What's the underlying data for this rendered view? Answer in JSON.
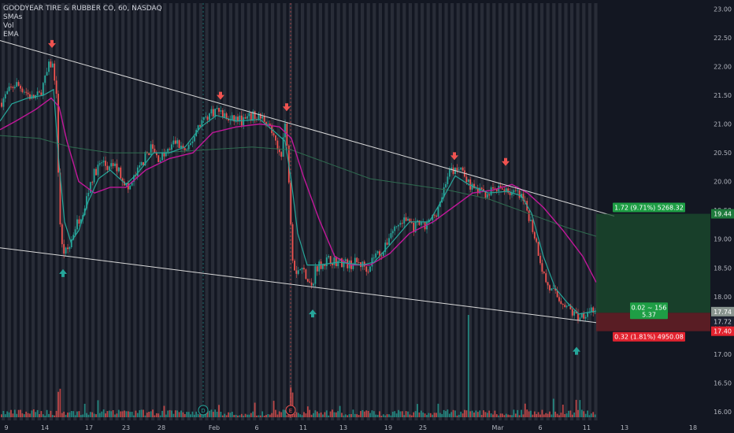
{
  "legend": {
    "symbol": "GOODYEAR TIRE & RUBBER CO, 60, NASDAQ",
    "indicators": [
      "SMAs",
      "Vol",
      "EMA"
    ]
  },
  "colors": {
    "background": "#131722",
    "session_stripe": "#3b3e48",
    "up_candle": "#26a69a",
    "down_candle": "#ef5350",
    "ema_fast": "#26a69a",
    "sma_mid": "#c2179a",
    "sma_slow": "#2e6b4f",
    "trendline": "#d9d9d9",
    "marker_down": "#ef5350",
    "marker_up": "#26a69a"
  },
  "chart_data": {
    "type": "candlestick",
    "yaxis": {
      "range": [
        15.85,
        23.1
      ],
      "ticks": [
        "16.00",
        "16.50",
        "17.00",
        "17.50",
        "18.00",
        "18.50",
        "19.00",
        "19.50",
        "20.00",
        "20.50",
        "21.00",
        "21.50",
        "22.00",
        "22.50",
        "23.00"
      ]
    },
    "xaxis": {
      "ticks": [
        {
          "label": "9",
          "pos": 8
        },
        {
          "label": "14",
          "pos": 57
        },
        {
          "label": "17",
          "pos": 113
        },
        {
          "label": "23",
          "pos": 160
        },
        {
          "label": "28",
          "pos": 205
        },
        {
          "label": "Feb",
          "pos": 272
        },
        {
          "label": "6",
          "pos": 326
        },
        {
          "label": "11",
          "pos": 385
        },
        {
          "label": "13",
          "pos": 436
        },
        {
          "label": "19",
          "pos": 493
        },
        {
          "label": "25",
          "pos": 537
        },
        {
          "label": "Mar",
          "pos": 632
        },
        {
          "label": "6",
          "pos": 686
        },
        {
          "label": "11",
          "pos": 745
        },
        {
          "label": "13",
          "pos": 793
        },
        {
          "label": "18",
          "pos": 880
        }
      ]
    },
    "price_path": [
      [
        0,
        21.35
      ],
      [
        10,
        21.55
      ],
      [
        20,
        21.7
      ],
      [
        30,
        21.6
      ],
      [
        40,
        21.45
      ],
      [
        50,
        21.5
      ],
      [
        58,
        21.8
      ],
      [
        63,
        22.05
      ],
      [
        68,
        22.0
      ],
      [
        72,
        21.4
      ],
      [
        75,
        19.6
      ],
      [
        78,
        18.9
      ],
      [
        82,
        18.75
      ],
      [
        88,
        18.85
      ],
      [
        95,
        19.2
      ],
      [
        102,
        19.4
      ],
      [
        108,
        19.6
      ],
      [
        115,
        20.0
      ],
      [
        122,
        20.2
      ],
      [
        130,
        20.35
      ],
      [
        138,
        20.2
      ],
      [
        145,
        20.3
      ],
      [
        152,
        20.15
      ],
      [
        158,
        20.0
      ],
      [
        163,
        19.85
      ],
      [
        170,
        20.05
      ],
      [
        178,
        20.25
      ],
      [
        185,
        20.45
      ],
      [
        192,
        20.6
      ],
      [
        200,
        20.4
      ],
      [
        208,
        20.45
      ],
      [
        215,
        20.55
      ],
      [
        222,
        20.7
      ],
      [
        230,
        20.6
      ],
      [
        238,
        20.5
      ],
      [
        245,
        20.75
      ],
      [
        252,
        21.0
      ],
      [
        260,
        21.1
      ],
      [
        268,
        21.2
      ],
      [
        276,
        21.25
      ],
      [
        284,
        21.15
      ],
      [
        292,
        21.05
      ],
      [
        300,
        21.1
      ],
      [
        308,
        21.05
      ],
      [
        316,
        21.1
      ],
      [
        324,
        21.15
      ],
      [
        332,
        21.1
      ],
      [
        340,
        21.05
      ],
      [
        346,
        20.8
      ],
      [
        352,
        20.55
      ],
      [
        357,
        20.5
      ],
      [
        362,
        21.0
      ],
      [
        366,
        20.3
      ],
      [
        369,
        19.4
      ],
      [
        372,
        18.6
      ],
      [
        376,
        18.45
      ],
      [
        382,
        18.5
      ],
      [
        388,
        18.4
      ],
      [
        393,
        18.25
      ],
      [
        397,
        18.1
      ],
      [
        400,
        18.5
      ],
      [
        405,
        18.55
      ],
      [
        412,
        18.6
      ],
      [
        420,
        18.65
      ],
      [
        428,
        18.6
      ],
      [
        436,
        18.6
      ],
      [
        444,
        18.55
      ],
      [
        452,
        18.6
      ],
      [
        460,
        18.55
      ],
      [
        468,
        18.5
      ],
      [
        474,
        18.7
      ],
      [
        480,
        18.75
      ],
      [
        488,
        18.8
      ],
      [
        495,
        19.1
      ],
      [
        502,
        19.2
      ],
      [
        510,
        19.3
      ],
      [
        518,
        19.35
      ],
      [
        525,
        19.2
      ],
      [
        532,
        19.25
      ],
      [
        540,
        19.2
      ],
      [
        548,
        19.35
      ],
      [
        555,
        19.5
      ],
      [
        562,
        19.8
      ],
      [
        568,
        20.1
      ],
      [
        574,
        20.2
      ],
      [
        580,
        20.15
      ],
      [
        586,
        20.25
      ],
      [
        592,
        20.0
      ],
      [
        598,
        19.9
      ],
      [
        605,
        19.85
      ],
      [
        612,
        19.8
      ],
      [
        620,
        19.8
      ],
      [
        628,
        19.85
      ],
      [
        636,
        19.85
      ],
      [
        642,
        19.9
      ],
      [
        648,
        19.8
      ],
      [
        655,
        19.8
      ],
      [
        662,
        19.7
      ],
      [
        668,
        19.55
      ],
      [
        674,
        19.3
      ],
      [
        680,
        19.0
      ],
      [
        685,
        18.7
      ],
      [
        690,
        18.4
      ],
      [
        695,
        18.2
      ],
      [
        700,
        18.1
      ],
      [
        705,
        18.05
      ],
      [
        710,
        17.95
      ],
      [
        716,
        17.9
      ],
      [
        722,
        17.8
      ],
      [
        728,
        17.7
      ],
      [
        734,
        17.65
      ],
      [
        740,
        17.7
      ],
      [
        746,
        17.75
      ],
      [
        752,
        17.8
      ],
      [
        757,
        17.72
      ]
    ],
    "ema_fast": [
      [
        0,
        21.05
      ],
      [
        15,
        21.35
      ],
      [
        35,
        21.45
      ],
      [
        55,
        21.5
      ],
      [
        68,
        21.6
      ],
      [
        75,
        20.3
      ],
      [
        82,
        19.3
      ],
      [
        90,
        18.95
      ],
      [
        100,
        19.15
      ],
      [
        112,
        19.65
      ],
      [
        125,
        20.05
      ],
      [
        140,
        20.2
      ],
      [
        160,
        19.95
      ],
      [
        175,
        20.15
      ],
      [
        195,
        20.5
      ],
      [
        215,
        20.5
      ],
      [
        235,
        20.6
      ],
      [
        255,
        20.95
      ],
      [
        275,
        21.15
      ],
      [
        300,
        21.05
      ],
      [
        330,
        21.08
      ],
      [
        350,
        20.85
      ],
      [
        362,
        20.7
      ],
      [
        370,
        20.0
      ],
      [
        378,
        19.1
      ],
      [
        390,
        18.55
      ],
      [
        405,
        18.55
      ],
      [
        430,
        18.6
      ],
      [
        460,
        18.55
      ],
      [
        475,
        18.6
      ],
      [
        495,
        18.9
      ],
      [
        520,
        19.3
      ],
      [
        545,
        19.3
      ],
      [
        562,
        19.7
      ],
      [
        578,
        20.1
      ],
      [
        595,
        19.95
      ],
      [
        620,
        19.8
      ],
      [
        645,
        19.83
      ],
      [
        662,
        19.75
      ],
      [
        675,
        19.45
      ],
      [
        690,
        18.7
      ],
      [
        705,
        18.15
      ],
      [
        720,
        17.9
      ],
      [
        735,
        17.7
      ],
      [
        757,
        17.75
      ]
    ],
    "sma_mid": [
      [
        0,
        20.9
      ],
      [
        20,
        21.05
      ],
      [
        45,
        21.25
      ],
      [
        65,
        21.45
      ],
      [
        75,
        21.3
      ],
      [
        85,
        20.7
      ],
      [
        100,
        20.0
      ],
      [
        120,
        19.8
      ],
      [
        140,
        19.9
      ],
      [
        160,
        19.9
      ],
      [
        185,
        20.2
      ],
      [
        215,
        20.4
      ],
      [
        245,
        20.5
      ],
      [
        270,
        20.85
      ],
      [
        300,
        20.95
      ],
      [
        330,
        21.0
      ],
      [
        355,
        20.95
      ],
      [
        370,
        20.75
      ],
      [
        385,
        20.1
      ],
      [
        405,
        19.35
      ],
      [
        425,
        18.7
      ],
      [
        445,
        18.55
      ],
      [
        470,
        18.55
      ],
      [
        495,
        18.75
      ],
      [
        520,
        19.1
      ],
      [
        550,
        19.3
      ],
      [
        575,
        19.55
      ],
      [
        600,
        19.8
      ],
      [
        625,
        19.85
      ],
      [
        650,
        19.95
      ],
      [
        670,
        19.8
      ],
      [
        690,
        19.55
      ],
      [
        715,
        19.15
      ],
      [
        740,
        18.7
      ],
      [
        757,
        18.25
      ]
    ],
    "sma_slow": [
      [
        0,
        20.8
      ],
      [
        50,
        20.75
      ],
      [
        90,
        20.6
      ],
      [
        140,
        20.5
      ],
      [
        200,
        20.5
      ],
      [
        260,
        20.55
      ],
      [
        320,
        20.6
      ],
      [
        370,
        20.55
      ],
      [
        420,
        20.3
      ],
      [
        470,
        20.05
      ],
      [
        520,
        19.95
      ],
      [
        570,
        19.85
      ],
      [
        620,
        19.7
      ],
      [
        670,
        19.45
      ],
      [
        720,
        19.2
      ],
      [
        757,
        19.05
      ]
    ],
    "trendlines": [
      {
        "from": [
          0,
          22.45
        ],
        "to": [
          780,
          19.4
        ]
      },
      {
        "from": [
          0,
          18.85
        ],
        "to": [
          757,
          17.55
        ]
      }
    ],
    "down_markers": [
      [
        66,
        22.35
      ],
      [
        280,
        21.45
      ],
      [
        364,
        21.25
      ],
      [
        577,
        20.4
      ],
      [
        642,
        20.3
      ]
    ],
    "up_markers": [
      [
        80,
        18.45
      ],
      [
        397,
        17.75
      ],
      [
        732,
        17.1
      ]
    ],
    "current_price": {
      "label": "17.72",
      "value": 17.72
    },
    "axis_badges": [
      {
        "label": "19.44",
        "value": 19.44,
        "color": "#1e7a3c"
      },
      {
        "label": "17.74",
        "value": 17.74,
        "color": "#8a9590"
      },
      {
        "label": "17.40",
        "value": 17.4,
        "color": "#e3232f"
      }
    ],
    "position": {
      "entry": 17.72,
      "target": 19.44,
      "stop": 17.4,
      "profit_label": "1.72 (9.71%) 5268.32",
      "loss_label": "0.32 (1.81%) 4950.08",
      "ratio_label": "0.02 ~ 156",
      "ratio_label_2": "5.37"
    },
    "event_markers": [
      {
        "label": "D",
        "pos": 258
      },
      {
        "label": "E",
        "pos": 369
      }
    ]
  }
}
